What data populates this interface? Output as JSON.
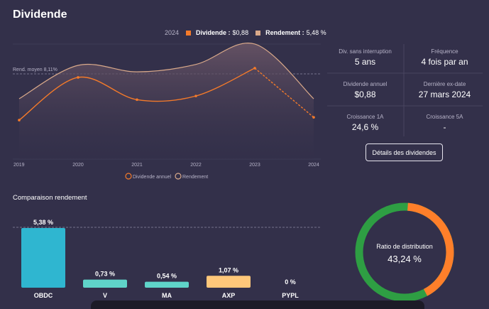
{
  "title": "Dividende",
  "legend": {
    "year": "2024",
    "dividend_label": "Dividende :",
    "dividend_value": "$0,88",
    "yield_label": "Rendement :",
    "yield_value": "5,48 %"
  },
  "colors": {
    "dividend": "#f47a2a",
    "yield": "#d9a98a",
    "bar_obdc": "#2fb6d0",
    "bar_v": "#5fd4c9",
    "bar_ma": "#5fd4c9",
    "bar_axp": "#ffc77a",
    "ring_green": "#2e9e43",
    "ring_orange": "#ff7f2a",
    "background": "#33304a"
  },
  "stats": [
    {
      "label": "Div. sans interruption",
      "value": "5 ans"
    },
    {
      "label": "Fréquence",
      "value": "4 fois par an"
    },
    {
      "label": "Dividende annuel",
      "value": "$0,88"
    },
    {
      "label": "Dernière ex-date",
      "value": "27 mars 2024"
    },
    {
      "label": "Croissance 1A",
      "value": "24,6 %"
    },
    {
      "label": "Croissance 5A",
      "value": "-"
    }
  ],
  "details_button": "Détails des dividendes",
  "comparison_title": "Comparaison rendement",
  "ratio": {
    "label": "Ratio de distribution",
    "value": "43,24 %",
    "fraction": 0.4324
  },
  "chart_data": [
    {
      "type": "line",
      "x": [
        "2019",
        "2020",
        "2021",
        "2022",
        "2023",
        "2024"
      ],
      "series": [
        {
          "name": "Dividende annuel",
          "values": [
            0.42,
            0.88,
            0.64,
            0.68,
            0.98,
            0.45
          ]
        },
        {
          "name": "Rendement",
          "values": [
            0.65,
            1.01,
            0.94,
            1.02,
            1.24,
            0.65
          ]
        }
      ],
      "annotation": "Rend. moyen 8,11%",
      "bottom_legend": [
        "Dividende annuel",
        "Rendement"
      ]
    },
    {
      "type": "bar",
      "categories": [
        "OBDC",
        "V",
        "MA",
        "AXP",
        "PYPL"
      ],
      "values": [
        5.38,
        0.73,
        0.54,
        1.07,
        0
      ],
      "labels": [
        "5,38 %",
        "0,73 %",
        "0,54 %",
        "1,07 %",
        "0 %"
      ],
      "ylim": [
        0,
        5.38
      ]
    }
  ]
}
